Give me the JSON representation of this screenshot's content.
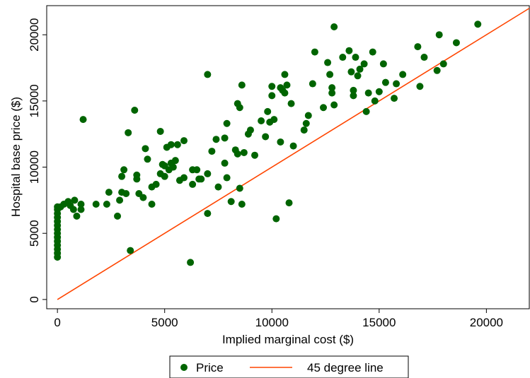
{
  "chart_data": {
    "type": "scatter",
    "title": "",
    "xlabel": "Implied marginal cost ($)",
    "ylabel": "Hospital base price ($)",
    "xlim": [
      -500,
      22000
    ],
    "ylim": [
      -700,
      22200
    ],
    "x_ticks": [
      0,
      5000,
      10000,
      15000,
      20000
    ],
    "y_ticks": [
      0,
      5000,
      10000,
      15000,
      20000
    ],
    "grid": false,
    "legend_position": "bottom",
    "colors": {
      "price": "#006400",
      "line": "#ff4500"
    },
    "series": [
      {
        "name": "Price",
        "kind": "scatter",
        "points": [
          [
            0,
            3200
          ],
          [
            0,
            3500
          ],
          [
            0,
            3800
          ],
          [
            0,
            4100
          ],
          [
            0,
            4400
          ],
          [
            0,
            4700
          ],
          [
            0,
            5000
          ],
          [
            0,
            5300
          ],
          [
            0,
            5600
          ],
          [
            0,
            5900
          ],
          [
            0,
            6200
          ],
          [
            0,
            6500
          ],
          [
            0,
            6800
          ],
          [
            0,
            7000
          ],
          [
            150,
            7000
          ],
          [
            300,
            7200
          ],
          [
            500,
            7400
          ],
          [
            600,
            7100
          ],
          [
            750,
            6800
          ],
          [
            800,
            7500
          ],
          [
            900,
            6300
          ],
          [
            1100,
            7200
          ],
          [
            1100,
            6800
          ],
          [
            1200,
            13600
          ],
          [
            1800,
            7200
          ],
          [
            2300,
            7200
          ],
          [
            2400,
            8100
          ],
          [
            2800,
            6300
          ],
          [
            2900,
            7500
          ],
          [
            3000,
            8100
          ],
          [
            3000,
            9300
          ],
          [
            3100,
            9800
          ],
          [
            3200,
            8000
          ],
          [
            3300,
            12600
          ],
          [
            3400,
            3700
          ],
          [
            3600,
            14300
          ],
          [
            3700,
            9100
          ],
          [
            3700,
            9400
          ],
          [
            3800,
            8000
          ],
          [
            4000,
            7700
          ],
          [
            4100,
            11400
          ],
          [
            4200,
            10600
          ],
          [
            4400,
            8500
          ],
          [
            4400,
            7200
          ],
          [
            4600,
            8700
          ],
          [
            4800,
            9500
          ],
          [
            4800,
            12700
          ],
          [
            4900,
            10200
          ],
          [
            5000,
            9300
          ],
          [
            5000,
            10100
          ],
          [
            5100,
            11500
          ],
          [
            5200,
            9800
          ],
          [
            5300,
            10300
          ],
          [
            5300,
            11700
          ],
          [
            5400,
            10000
          ],
          [
            5500,
            10500
          ],
          [
            5600,
            11700
          ],
          [
            5700,
            9000
          ],
          [
            5900,
            12000
          ],
          [
            5900,
            9200
          ],
          [
            6200,
            2800
          ],
          [
            6300,
            8700
          ],
          [
            6300,
            9800
          ],
          [
            6500,
            9800
          ],
          [
            6600,
            9100
          ],
          [
            6700,
            9100
          ],
          [
            7000,
            9500
          ],
          [
            7000,
            17000
          ],
          [
            7000,
            6500
          ],
          [
            7200,
            11200
          ],
          [
            7400,
            12100
          ],
          [
            7500,
            8500
          ],
          [
            7800,
            10300
          ],
          [
            7800,
            12200
          ],
          [
            7900,
            9200
          ],
          [
            7900,
            13300
          ],
          [
            8100,
            7400
          ],
          [
            8300,
            11300
          ],
          [
            8400,
            11000
          ],
          [
            8400,
            14800
          ],
          [
            8500,
            14500
          ],
          [
            8500,
            8400
          ],
          [
            8600,
            7200
          ],
          [
            8600,
            16200
          ],
          [
            8700,
            11100
          ],
          [
            8900,
            12500
          ],
          [
            9000,
            12800
          ],
          [
            9200,
            10900
          ],
          [
            9500,
            13500
          ],
          [
            9700,
            12300
          ],
          [
            9800,
            14200
          ],
          [
            9900,
            13400
          ],
          [
            10000,
            15400
          ],
          [
            10000,
            16100
          ],
          [
            10100,
            13600
          ],
          [
            10200,
            6100
          ],
          [
            10400,
            11900
          ],
          [
            10400,
            16000
          ],
          [
            10500,
            15800
          ],
          [
            10600,
            17000
          ],
          [
            10600,
            15600
          ],
          [
            10700,
            16200
          ],
          [
            10800,
            7300
          ],
          [
            10900,
            14800
          ],
          [
            11000,
            11600
          ],
          [
            11500,
            12800
          ],
          [
            11600,
            13300
          ],
          [
            11700,
            13900
          ],
          [
            11900,
            16300
          ],
          [
            12000,
            18700
          ],
          [
            12400,
            14500
          ],
          [
            12600,
            17900
          ],
          [
            12700,
            17000
          ],
          [
            12800,
            16000
          ],
          [
            12800,
            15600
          ],
          [
            12900,
            14700
          ],
          [
            12900,
            20600
          ],
          [
            13300,
            18300
          ],
          [
            13600,
            18800
          ],
          [
            13700,
            17200
          ],
          [
            13800,
            15800
          ],
          [
            13800,
            15400
          ],
          [
            13900,
            18300
          ],
          [
            14000,
            16900
          ],
          [
            14100,
            17400
          ],
          [
            14300,
            17800
          ],
          [
            14400,
            14200
          ],
          [
            14500,
            15600
          ],
          [
            14700,
            18700
          ],
          [
            14800,
            15000
          ],
          [
            15000,
            15700
          ],
          [
            15200,
            17800
          ],
          [
            15300,
            16400
          ],
          [
            15700,
            15200
          ],
          [
            15800,
            16300
          ],
          [
            16100,
            17000
          ],
          [
            16800,
            19100
          ],
          [
            16900,
            16100
          ],
          [
            17100,
            18300
          ],
          [
            17700,
            17300
          ],
          [
            17800,
            20000
          ],
          [
            18000,
            17800
          ],
          [
            18600,
            19400
          ],
          [
            19600,
            20800
          ]
        ]
      },
      {
        "name": "45 degree line",
        "kind": "line",
        "points": [
          [
            0,
            0
          ],
          [
            22000,
            22000
          ]
        ]
      }
    ]
  }
}
